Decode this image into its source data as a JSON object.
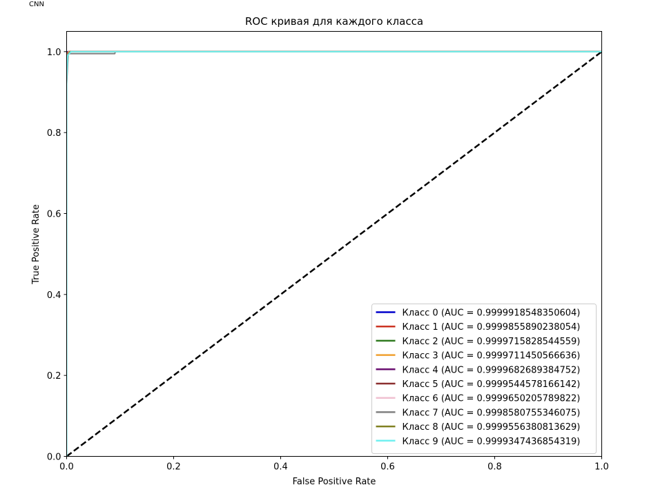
{
  "figure": {
    "corner_label": "CNN"
  },
  "chart_data": {
    "type": "line",
    "title": "ROC кривая для каждого класса",
    "xlabel": "False Positive Rate",
    "ylabel": "True Positive Rate",
    "xlim": [
      0.0,
      1.0
    ],
    "ylim": [
      0.0,
      1.05
    ],
    "xticks": [
      "0.0",
      "0.2",
      "0.4",
      "0.6",
      "0.8",
      "1.0"
    ],
    "yticks": [
      "0.0",
      "0.2",
      "0.4",
      "0.6",
      "0.8",
      "1.0"
    ],
    "grid": false,
    "legend_position": "lower right",
    "diagonal": {
      "x": [
        0,
        1
      ],
      "y": [
        0,
        1
      ],
      "color": "#000000",
      "style": "dashed"
    },
    "series": [
      {
        "name": "Класс 0 (AUC = 0.9999918548350604)",
        "color": "#0000cc",
        "x": [
          0,
          0,
          0.001,
          0.002,
          1
        ],
        "y": [
          0,
          0.97,
          0.995,
          1.0,
          1.0
        ]
      },
      {
        "name": "Класс 1 (AUC = 0.9999855890238054)",
        "color": "#cc3322",
        "x": [
          0,
          0,
          0.001,
          0.003,
          1
        ],
        "y": [
          0,
          0.96,
          0.995,
          1.0,
          1.0
        ]
      },
      {
        "name": "Класс 2 (AUC = 0.9999715828544559)",
        "color": "#2f7a1f",
        "x": [
          0,
          0,
          0.001,
          0.004,
          1
        ],
        "y": [
          0,
          0.96,
          0.99,
          1.0,
          1.0
        ]
      },
      {
        "name": "Класс 3 (AUC = 0.9999711450566636)",
        "color": "#f0a030",
        "x": [
          0,
          0,
          0.001,
          0.004,
          1
        ],
        "y": [
          0,
          0.95,
          0.99,
          1.0,
          1.0
        ]
      },
      {
        "name": "Класс 4 (AUC = 0.9999682689384752)",
        "color": "#6a0f70",
        "x": [
          0,
          0,
          0.001,
          0.005,
          1
        ],
        "y": [
          0,
          0.95,
          0.99,
          1.0,
          1.0
        ]
      },
      {
        "name": "Класс 5 (AUC = 0.9999544578166142)",
        "color": "#8b2f2f",
        "x": [
          0,
          0,
          0.002,
          0.006,
          1
        ],
        "y": [
          0,
          0.94,
          0.99,
          1.0,
          1.0
        ]
      },
      {
        "name": "Класс 6 (AUC = 0.9999650205789822)",
        "color": "#f0c0d0",
        "x": [
          0,
          0,
          0.001,
          0.005,
          1
        ],
        "y": [
          0,
          0.95,
          0.99,
          1.0,
          1.0
        ]
      },
      {
        "name": "Класс 7 (AUC = 0.9998580755346075)",
        "color": "#808080",
        "x": [
          0,
          0,
          0.003,
          0.09,
          0.091,
          1
        ],
        "y": [
          0,
          0.92,
          0.995,
          0.995,
          1.0,
          1.0
        ]
      },
      {
        "name": "Класс 8 (AUC = 0.9999556380813629)",
        "color": "#808020",
        "x": [
          0,
          0,
          0.002,
          0.006,
          1
        ],
        "y": [
          0,
          0.94,
          0.99,
          1.0,
          1.0
        ]
      },
      {
        "name": "Класс 9 (AUC = 0.9999347436854319)",
        "color": "#70f0f0",
        "x": [
          0,
          0,
          0.002,
          0.008,
          1
        ],
        "y": [
          0,
          0.93,
          0.99,
          1.0,
          1.0
        ]
      }
    ]
  }
}
